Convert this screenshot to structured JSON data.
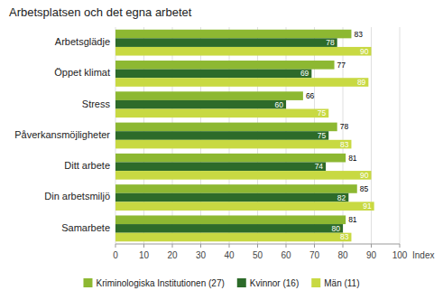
{
  "chart_data": {
    "type": "bar",
    "orientation": "horizontal",
    "title": "Arbetsplatsen och det egna arbetet",
    "xlabel": "Index",
    "categories": [
      "Samarbete",
      "Din arbetsmiljö",
      "Ditt arbete",
      "Påverkansmöjligheter",
      "Stress",
      "Öppet klimat",
      "Arbetsglädje"
    ],
    "series": [
      {
        "name": "Kriminologiska Institutionen (27)",
        "color": "#8DB832",
        "values": [
          81,
          85,
          81,
          78,
          66,
          77,
          83
        ]
      },
      {
        "name": "Kvinnor (16)",
        "color": "#2D6B2A",
        "values": [
          80,
          82,
          74,
          75,
          60,
          69,
          78
        ]
      },
      {
        "name": "Män (11)",
        "color": "#C8D942",
        "values": [
          83,
          91,
          90,
          83,
          75,
          89,
          90
        ]
      }
    ],
    "xlim": [
      0,
      100
    ],
    "xticks": [
      0,
      10,
      20,
      30,
      40,
      50,
      60,
      70,
      80,
      90,
      100
    ],
    "grid": true,
    "legend": "bottom",
    "data_labels": true
  }
}
